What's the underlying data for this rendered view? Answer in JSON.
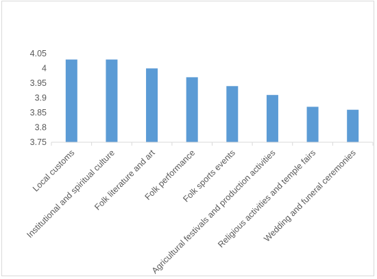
{
  "chart_data": {
    "type": "bar",
    "title": "",
    "xlabel": "",
    "ylabel": "",
    "categories": [
      "Local customs",
      "Institutional and spiritual culture",
      "Folk literature and art",
      "Folk performance",
      "Folk sports events",
      "Agricultural festivals and production activities",
      "Religious activities and temple fairs",
      "Wedding and funeral ceremonies"
    ],
    "values": [
      4.03,
      4.03,
      4.0,
      3.97,
      3.94,
      3.91,
      3.87,
      3.86
    ],
    "ylim": [
      3.75,
      4.05
    ],
    "yticks": [
      "3.75",
      "3.8",
      "3.85",
      "3.9",
      "3.95",
      "4",
      "4.05"
    ],
    "grid": false,
    "legend": "none",
    "bar_color": "#5b9bd5",
    "axis_color": "#d9d9d9"
  }
}
